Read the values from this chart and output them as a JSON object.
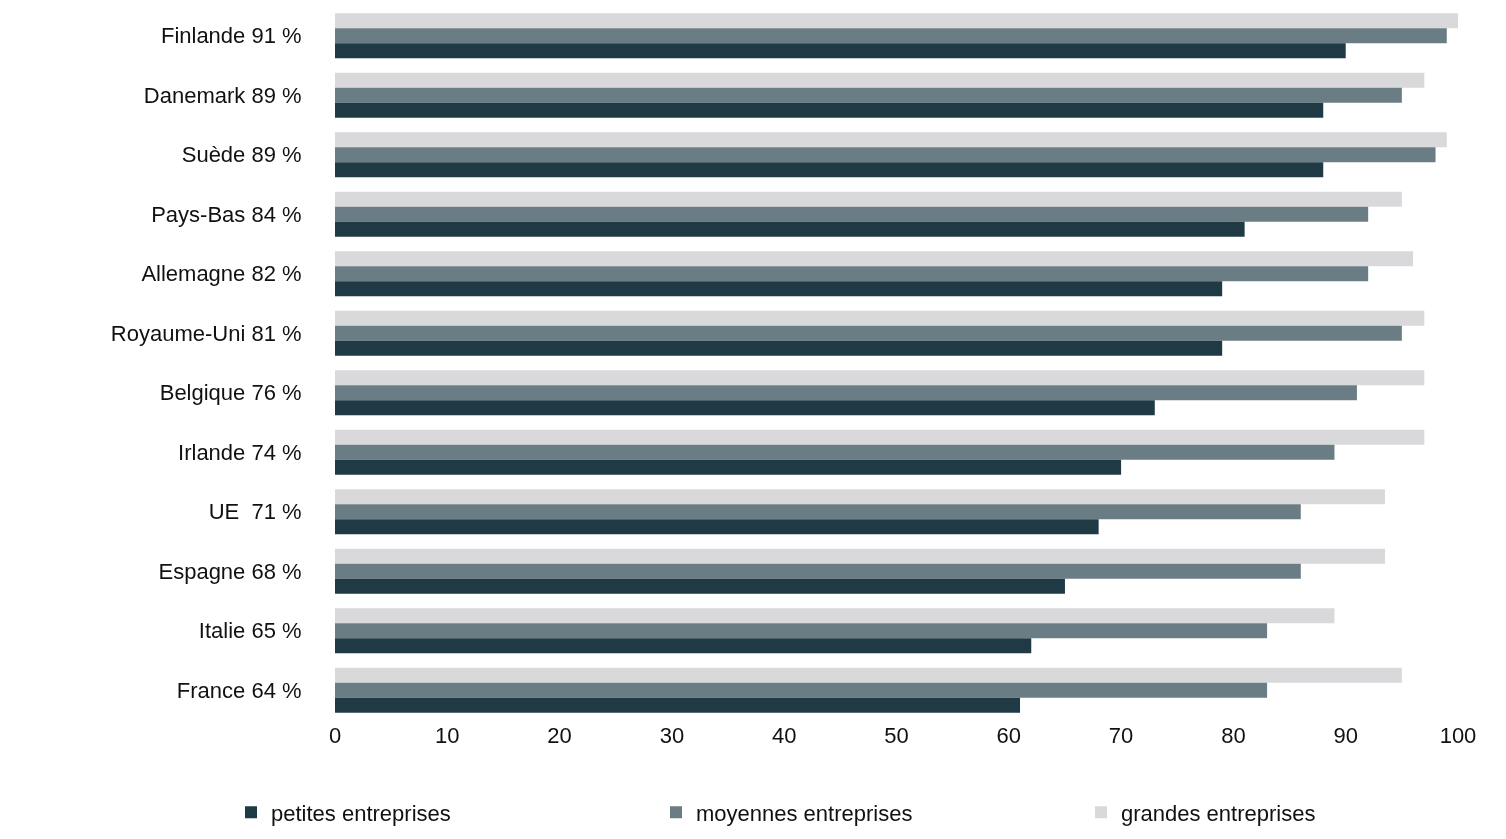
{
  "chart_data": {
    "type": "bar",
    "orientation": "horizontal",
    "categories": [
      "Finlande 91 %",
      "Danemark 89 %",
      "Suède 89 %",
      "Pays-Bas 84 %",
      "Allemagne 82 %",
      "Royaume-Uni 81 %",
      "Belgique 76 %",
      "Irlande 74 %",
      "UE  71 %",
      "Espagne 68 %",
      "Italie 65 %",
      "France 64 %"
    ],
    "series": [
      {
        "name": "petites entreprises",
        "color": "#1f3a45",
        "values": [
          90,
          88,
          88,
          81,
          79,
          79,
          73,
          70,
          68,
          65,
          62,
          61
        ]
      },
      {
        "name": "moyennes entreprises",
        "color": "#6a7c84",
        "values": [
          99,
          95,
          98,
          92,
          92,
          95,
          91,
          89,
          86,
          86,
          83,
          83
        ]
      },
      {
        "name": "grandes entreprises",
        "color": "#d9d9db",
        "values": [
          100,
          97,
          99,
          95,
          96,
          97,
          97,
          97,
          93.5,
          93.5,
          89,
          95
        ]
      }
    ],
    "xlim": [
      0,
      100
    ],
    "xticks": [
      0,
      10,
      20,
      30,
      40,
      50,
      60,
      70,
      80,
      90,
      100
    ],
    "legend": "bottom"
  }
}
